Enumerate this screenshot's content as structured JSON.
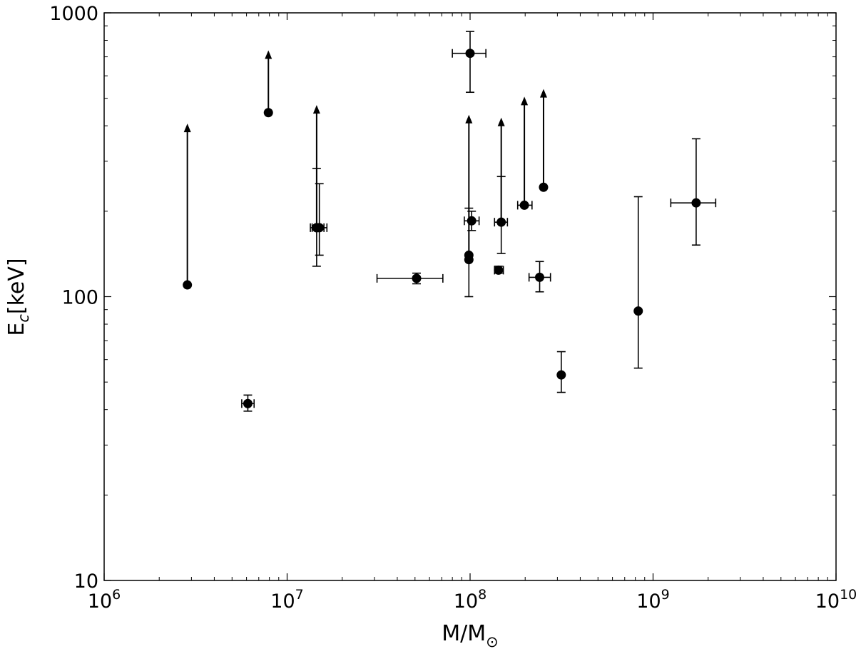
{
  "chart_data": {
    "type": "scatter",
    "xscale": "log",
    "yscale": "log",
    "xlim": [
      1000000,
      10000000000
    ],
    "ylim": [
      10,
      1000
    ],
    "xlabel": {
      "main": "M/M",
      "sub": "⊙"
    },
    "ylabel": {
      "main": "E",
      "sub": "c",
      "rest": "[keV]"
    },
    "xticks": [
      {
        "value": 1000000,
        "base": "10",
        "exp": "6"
      },
      {
        "value": 10000000,
        "base": "10",
        "exp": "7"
      },
      {
        "value": 100000000,
        "base": "10",
        "exp": "8"
      },
      {
        "value": 1000000000,
        "base": "10",
        "exp": "9"
      },
      {
        "value": 10000000000,
        "base": "10",
        "exp": "10"
      }
    ],
    "yticks": [
      {
        "value": 10,
        "label": "10"
      },
      {
        "value": 100,
        "label": "100"
      },
      {
        "value": 1000,
        "label": "1000"
      }
    ],
    "grid": false,
    "legend": "none",
    "marker_color": "#000000",
    "points": [
      {
        "x": 2850000,
        "y": 110,
        "lower_limit": true,
        "arrow_to": 400
      },
      {
        "x": 6100000,
        "y": 42,
        "y_lo": 39.5,
        "y_hi": 45,
        "x_lo": 5650000,
        "x_hi": 6600000
      },
      {
        "x": 7900000,
        "y": 445,
        "lower_limit": true,
        "arrow_to": 725
      },
      {
        "x": 14500000,
        "y": 175,
        "y_lo": 128,
        "y_hi": 283,
        "x_lo": 13400000,
        "x_hi": 15900000
      },
      {
        "x": 15000000,
        "y": 175,
        "y_lo": 140,
        "y_hi": 250,
        "x_lo": 13700000,
        "x_hi": 16500000
      },
      {
        "x": 14500000,
        "y": 175,
        "lower_limit": true,
        "arrow_to": 465
      },
      {
        "x": 51000000,
        "y": 116,
        "y_lo": 111,
        "y_hi": 121,
        "x_lo": 31000000,
        "x_hi": 71000000
      },
      {
        "x": 98500000,
        "y": 135,
        "y_lo": 100,
        "y_hi": 205,
        "lower_limit": true,
        "arrow_to": 430
      },
      {
        "x": 98500000,
        "y": 140
      },
      {
        "x": 102000000,
        "y": 185,
        "y_lo": 171,
        "y_hi": 200,
        "x_lo": 93000000,
        "x_hi": 112000000
      },
      {
        "x": 100000000,
        "y": 720,
        "y_lo": 525,
        "y_hi": 860,
        "x_lo": 80000000,
        "x_hi": 122000000
      },
      {
        "x": 143000000,
        "y": 124,
        "y_lo": 121,
        "y_hi": 128,
        "x_lo": 136000000,
        "x_hi": 152000000
      },
      {
        "x": 148000000,
        "y": 183,
        "y_lo": 142,
        "y_hi": 265,
        "x_lo": 136000000,
        "x_hi": 160000000,
        "lower_limit": true,
        "arrow_to": 420
      },
      {
        "x": 198000000,
        "y": 210,
        "x_lo": 182000000,
        "x_hi": 218000000,
        "lower_limit": true,
        "arrow_to": 498
      },
      {
        "x": 240000000,
        "y": 117,
        "y_lo": 104,
        "y_hi": 133,
        "x_lo": 210000000,
        "x_hi": 275000000
      },
      {
        "x": 252000000,
        "y": 243,
        "lower_limit": true,
        "arrow_to": 530
      },
      {
        "x": 315000000,
        "y": 53,
        "y_lo": 46,
        "y_hi": 64
      },
      {
        "x": 830000000,
        "y": 89,
        "y_lo": 56,
        "y_hi": 225
      },
      {
        "x": 1720000000,
        "y": 214,
        "y_lo": 152,
        "y_hi": 360,
        "x_lo": 1250000000,
        "x_hi": 2200000000
      }
    ]
  }
}
